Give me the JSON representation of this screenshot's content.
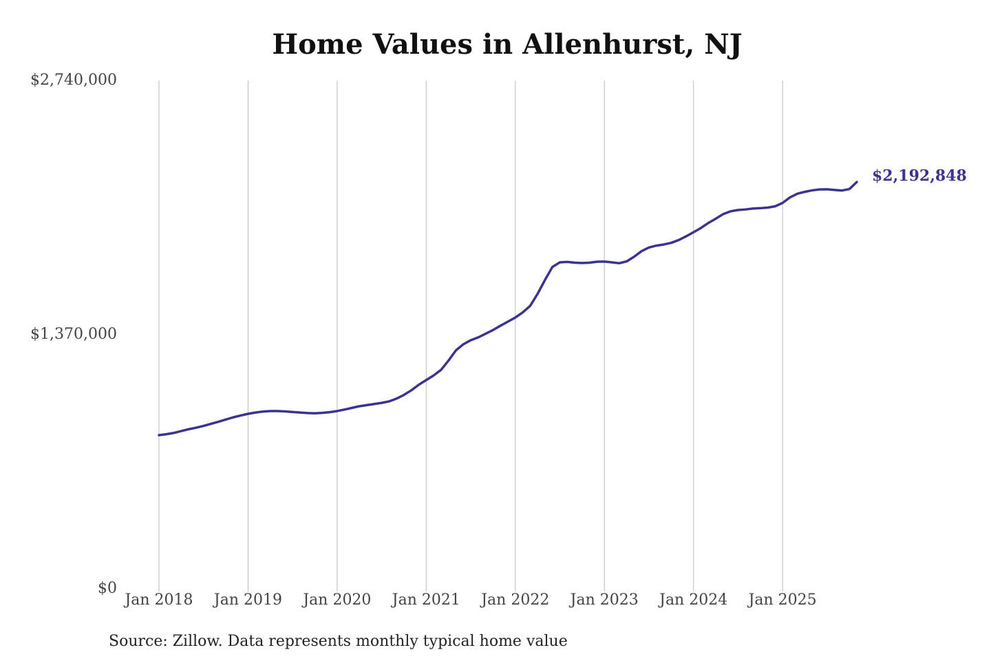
{
  "chart_data": {
    "type": "line",
    "title": "Home Values in Allenhurst, NJ",
    "source": "Source: Zillow. Data represents monthly typical home value",
    "x": [
      "2018-01",
      "2018-02",
      "2018-03",
      "2018-04",
      "2018-05",
      "2018-06",
      "2018-07",
      "2018-08",
      "2018-09",
      "2018-10",
      "2018-11",
      "2018-12",
      "2019-01",
      "2019-02",
      "2019-03",
      "2019-04",
      "2019-05",
      "2019-06",
      "2019-07",
      "2019-08",
      "2019-09",
      "2019-10",
      "2019-11",
      "2019-12",
      "2020-01",
      "2020-02",
      "2020-03",
      "2020-04",
      "2020-05",
      "2020-06",
      "2020-07",
      "2020-08",
      "2020-09",
      "2020-10",
      "2020-11",
      "2020-12",
      "2021-01",
      "2021-02",
      "2021-03",
      "2021-04",
      "2021-05",
      "2021-06",
      "2021-07",
      "2021-08",
      "2021-09",
      "2021-10",
      "2021-11",
      "2021-12",
      "2022-01",
      "2022-02",
      "2022-03",
      "2022-04",
      "2022-05",
      "2022-06",
      "2022-07",
      "2022-08",
      "2022-09",
      "2022-10",
      "2022-11",
      "2022-12",
      "2023-01",
      "2023-02",
      "2023-03",
      "2023-04",
      "2023-05",
      "2023-06",
      "2023-07",
      "2023-08",
      "2023-09",
      "2023-10",
      "2023-11",
      "2023-12",
      "2024-01",
      "2024-02",
      "2024-03",
      "2024-04",
      "2024-05",
      "2024-06",
      "2024-07",
      "2024-08",
      "2024-09",
      "2024-10",
      "2024-11",
      "2024-12",
      "2025-01",
      "2025-02",
      "2025-03",
      "2025-04",
      "2025-05",
      "2025-06",
      "2025-07",
      "2025-08",
      "2025-09",
      "2025-10",
      "2025-11"
    ],
    "series": [
      {
        "name": "Typical home value",
        "color": "#3a3391",
        "values": [
          828000,
          833000,
          840000,
          850000,
          860000,
          868000,
          878000,
          889000,
          900000,
          912000,
          924000,
          934000,
          943000,
          950000,
          955000,
          958000,
          958000,
          956000,
          953000,
          950000,
          947000,
          946000,
          948000,
          952000,
          958000,
          966000,
          975000,
          984000,
          990000,
          996000,
          1002000,
          1010000,
          1025000,
          1045000,
          1070000,
          1100000,
          1125000,
          1150000,
          1180000,
          1230000,
          1285000,
          1318000,
          1340000,
          1355000,
          1375000,
          1395000,
          1418000,
          1440000,
          1462000,
          1490000,
          1525000,
          1590000,
          1665000,
          1735000,
          1760000,
          1762000,
          1758000,
          1756000,
          1758000,
          1763000,
          1764000,
          1760000,
          1755000,
          1765000,
          1790000,
          1820000,
          1840000,
          1850000,
          1856000,
          1865000,
          1880000,
          1900000,
          1922000,
          1945000,
          1972000,
          1995000,
          2020000,
          2035000,
          2042000,
          2045000,
          2050000,
          2052000,
          2055000,
          2062000,
          2080000,
          2110000,
          2130000,
          2140000,
          2148000,
          2153000,
          2154000,
          2150000,
          2147000,
          2155000,
          2192848
        ],
        "end_label": {
          "value": 2192848,
          "label": "$2,192,848"
        }
      }
    ],
    "xlim": [
      "2018-01",
      "2025-11"
    ],
    "xticks": [
      {
        "value": "2018-01",
        "label": "Jan 2018"
      },
      {
        "value": "2019-01",
        "label": "Jan 2019"
      },
      {
        "value": "2020-01",
        "label": "Jan 2020"
      },
      {
        "value": "2021-01",
        "label": "Jan 2021"
      },
      {
        "value": "2022-01",
        "label": "Jan 2022"
      },
      {
        "value": "2023-01",
        "label": "Jan 2023"
      },
      {
        "value": "2024-01",
        "label": "Jan 2024"
      },
      {
        "value": "2025-01",
        "label": "Jan 2025"
      }
    ],
    "ylim": [
      0,
      2740000
    ],
    "yticks": [
      {
        "value": 0,
        "label": "$0"
      },
      {
        "value": 1370000,
        "label": "$1,370,000"
      },
      {
        "value": 2740000,
        "label": "$2,740,000"
      }
    ],
    "grid": "x"
  }
}
